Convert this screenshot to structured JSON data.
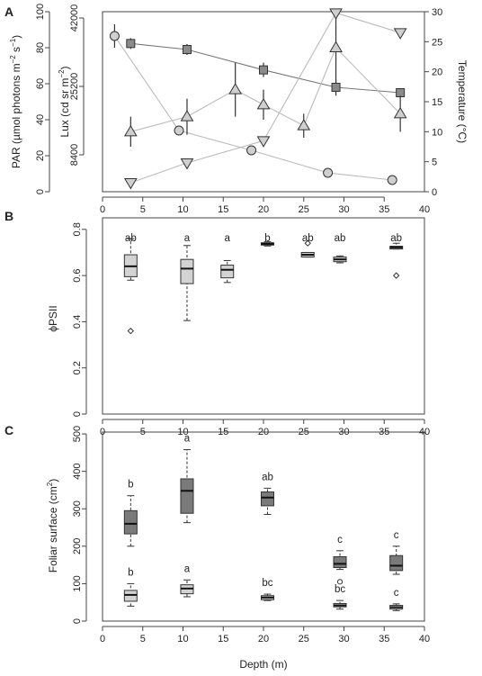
{
  "chart_data": [
    {
      "panel": "A",
      "type": "line",
      "x_ticks": [
        0,
        5,
        10,
        15,
        20,
        25,
        30,
        35,
        40
      ],
      "y_axes": [
        {
          "label_parts": [
            "PAR (µmol photons m",
            "−2",
            " s",
            "−1",
            ")"
          ],
          "ylim": [
            0,
            100
          ],
          "ticks": [
            0,
            20,
            40,
            60,
            80,
            100
          ]
        },
        {
          "label_parts": [
            "Lux (cd sr m",
            "−2",
            ")"
          ],
          "ticks": [
            8400,
            25200,
            42000
          ]
        },
        {
          "label_parts": [
            "Temperature (°C)"
          ],
          "ylim": [
            0,
            30
          ],
          "ticks": [
            0,
            5,
            10,
            15,
            20,
            25,
            30
          ]
        }
      ],
      "series": [
        {
          "marker": "circle",
          "color": "#cfcfcf",
          "axis": "PAR",
          "x": [
            1.5,
            9.5,
            18.5,
            28,
            36
          ],
          "y": [
            86.5,
            34,
            23,
            10.5,
            6.5
          ],
          "err": [
            6.5,
            0,
            0,
            0,
            0
          ]
        },
        {
          "marker": "square",
          "color": "#8a8a8a",
          "axis": "Temperature",
          "x": [
            3.5,
            10.5,
            20,
            29,
            37
          ],
          "y": [
            24.7,
            23.7,
            20.3,
            17.4,
            16.5
          ],
          "err": [
            0.9,
            0.9,
            1.2,
            1.4,
            0.7
          ]
        },
        {
          "marker": "triangle-up",
          "color": "#cfcfcf",
          "axis": "Temperature",
          "x": [
            3.5,
            10.5,
            16.5,
            20,
            25,
            29,
            37
          ],
          "y": [
            10,
            12.5,
            17,
            14.5,
            11,
            24,
            13
          ],
          "err": [
            2.5,
            3,
            4.5,
            2.5,
            2,
            6,
            3
          ]
        },
        {
          "marker": "triangle-down",
          "color": "#cfcfcf",
          "axis": "Temperature",
          "x": [
            3.5,
            10.5,
            20,
            29,
            37
          ],
          "y": [
            1.5,
            4.8,
            8.5,
            29.8,
            26.5
          ],
          "err": [
            0,
            0,
            0,
            0,
            0
          ]
        }
      ]
    },
    {
      "panel": "B",
      "type": "box",
      "ylabel": "ϕPSII",
      "ylim": [
        0,
        0.85
      ],
      "y_ticks": [
        "0.0",
        "0.2",
        "0.4",
        "0.6",
        "0.8"
      ],
      "x_ticks": [
        0,
        5,
        10,
        15,
        20,
        25,
        30,
        35,
        40
      ],
      "boxes": [
        {
          "x": 3.5,
          "letter": "ab",
          "color": "#d3d3d3",
          "wlo": 0.58,
          "q1": 0.595,
          "med": 0.64,
          "q3": 0.69,
          "whi": 0.76,
          "out": [
            0.36
          ]
        },
        {
          "x": 10.5,
          "letter": "a",
          "color": "#d3d3d3",
          "wlo": 0.405,
          "q1": 0.565,
          "med": 0.63,
          "q3": 0.67,
          "whi": 0.73,
          "out": []
        },
        {
          "x": 15.5,
          "letter": "a",
          "color": "#d3d3d3",
          "wlo": 0.57,
          "q1": 0.59,
          "med": 0.625,
          "q3": 0.645,
          "whi": 0.665,
          "out": []
        },
        {
          "x": 20.5,
          "letter": "b",
          "color": "#d3d3d3",
          "wlo": 0.728,
          "q1": 0.732,
          "med": 0.737,
          "q3": 0.742,
          "whi": 0.746,
          "out": []
        },
        {
          "x": 25.5,
          "letter": "ab",
          "color": "#d3d3d3",
          "wlo": 0.68,
          "q1": 0.68,
          "med": 0.69,
          "q3": 0.7,
          "whi": 0.7,
          "out": [
            0.74
          ]
        },
        {
          "x": 29.5,
          "letter": "ab",
          "color": "#d3d3d3",
          "wlo": 0.655,
          "q1": 0.66,
          "med": 0.67,
          "q3": 0.68,
          "whi": 0.685,
          "out": []
        },
        {
          "x": 36.5,
          "letter": "ab",
          "color": "#d3d3d3",
          "wlo": 0.715,
          "q1": 0.715,
          "med": 0.722,
          "q3": 0.727,
          "whi": 0.74,
          "out": [
            0.6
          ]
        }
      ]
    },
    {
      "panel": "C",
      "type": "box",
      "ylabel_parts": [
        "Foliar surface (cm",
        "2",
        ")"
      ],
      "xlabel": "Depth (m)",
      "ylim": [
        0,
        500
      ],
      "y_ticks": [
        0,
        100,
        200,
        300,
        400,
        500
      ],
      "x_ticks": [
        0,
        5,
        10,
        15,
        20,
        25,
        30,
        35,
        40
      ],
      "boxes": [
        {
          "x": 3.5,
          "letter": "b",
          "color": "#7a7a7a",
          "wlo": 200,
          "q1": 233,
          "med": 260,
          "q3": 295,
          "whi": 335,
          "out": []
        },
        {
          "x": 10.5,
          "letter": "a",
          "color": "#7a7a7a",
          "wlo": 263,
          "q1": 288,
          "med": 348,
          "q3": 380,
          "whi": 458,
          "out": []
        },
        {
          "x": 20.5,
          "letter": "ab",
          "color": "#7a7a7a",
          "wlo": 285,
          "q1": 308,
          "med": 330,
          "q3": 345,
          "whi": 355,
          "out": []
        },
        {
          "x": 29.5,
          "letter": "c",
          "color": "#7a7a7a",
          "wlo": 138,
          "q1": 143,
          "med": 153,
          "q3": 172,
          "whi": 188,
          "out": [
            105
          ]
        },
        {
          "x": 36.5,
          "letter": "c",
          "color": "#7a7a7a",
          "wlo": 125,
          "q1": 135,
          "med": 148,
          "q3": 175,
          "whi": 200,
          "out": []
        },
        {
          "x": 3.5,
          "letter": "b",
          "color": "#d3d3d3",
          "wlo": 40,
          "q1": 53,
          "med": 70,
          "q3": 82,
          "whi": 100,
          "out": []
        },
        {
          "x": 10.5,
          "letter": "a",
          "color": "#d3d3d3",
          "wlo": 65,
          "q1": 73,
          "med": 87,
          "q3": 97,
          "whi": 110,
          "out": []
        },
        {
          "x": 20.5,
          "letter": "bc",
          "color": "#d3d3d3",
          "wlo": 55,
          "q1": 57,
          "med": 63,
          "q3": 68,
          "whi": 72,
          "out": []
        },
        {
          "x": 29.5,
          "letter": "bc",
          "color": "#d3d3d3",
          "wlo": 32,
          "q1": 38,
          "med": 42,
          "q3": 47,
          "whi": 55,
          "out": []
        },
        {
          "x": 36.5,
          "letter": "c",
          "color": "#d3d3d3",
          "wlo": 28,
          "q1": 32,
          "med": 37,
          "q3": 42,
          "whi": 46,
          "out": []
        }
      ]
    }
  ]
}
